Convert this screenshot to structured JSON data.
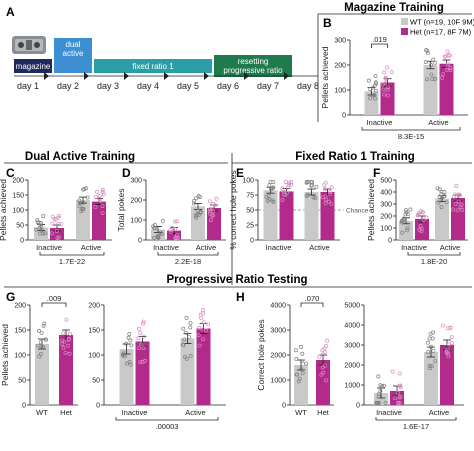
{
  "colors": {
    "wt": "#c9c9c9",
    "het": "#b22a8a",
    "hetDot": "#d98cc3",
    "tl_magazine": "#1f2a5c",
    "tl_dual": "#3d8fd1",
    "tl_fr1": "#2a9ea5",
    "tl_resetting": "#1f7a4d"
  },
  "panel_letters": {
    "a": "A",
    "b": "B",
    "c": "C",
    "d": "D",
    "e": "E",
    "f": "F",
    "g": "G",
    "h": "H"
  },
  "section_titles": {
    "magazine": "Magazine Training",
    "dual": "Dual Active Training",
    "fr1": "Fixed Ratio 1 Training",
    "pr": "Progressive Ratio Testing"
  },
  "timeline": {
    "days": [
      "day 1",
      "day 2",
      "day 3",
      "day 4",
      "day 5",
      "day 6",
      "day 7",
      "day 8"
    ],
    "phases": [
      {
        "label": "magazine",
        "start": 1,
        "end": 2,
        "color_key": "tl_magazine"
      },
      {
        "label": "dual active",
        "start": 2,
        "end": 3,
        "color_key": "tl_dual"
      },
      {
        "label": "fixed ratio 1",
        "start": 3,
        "end": 6,
        "color_key": "tl_fr1"
      },
      {
        "label": "resetting progressive ratio",
        "start": 6,
        "end": 8,
        "color_key": "tl_resetting"
      }
    ]
  },
  "legend": {
    "wt": "WT (n=19, 10F 9M)",
    "het": "Het (n=17, 8F 7M)"
  },
  "chart_data": [
    {
      "panel": "B",
      "type": "bar",
      "ylabel": "Pellets achieved",
      "ylim": [
        0,
        300
      ],
      "yticks": [
        0,
        100,
        200,
        300
      ],
      "categories": [
        "Inactive",
        "Active"
      ],
      "series": [
        {
          "name": "WT",
          "values": [
            95,
            200
          ]
        },
        {
          "name": "Het",
          "values": [
            130,
            205
          ]
        }
      ],
      "annotations": [
        {
          "text": ".019",
          "between": "Inactive"
        }
      ],
      "pvalue": "8.3E-15"
    },
    {
      "panel": "C",
      "type": "bar",
      "ylabel": "Pellets achieved",
      "ylim": [
        0,
        200
      ],
      "yticks": [
        0,
        50,
        100,
        150,
        200
      ],
      "categories": [
        "Inactive",
        "Active"
      ],
      "series": [
        {
          "name": "WT",
          "values": [
            42,
            133
          ]
        },
        {
          "name": "Het",
          "values": [
            40,
            128
          ]
        }
      ],
      "pvalue": "1.7E-22"
    },
    {
      "panel": "D",
      "type": "bar",
      "ylabel": "Total pokes",
      "ylim": [
        0,
        300
      ],
      "yticks": [
        0,
        100,
        200,
        300
      ],
      "categories": [
        "Inactive",
        "Active"
      ],
      "series": [
        {
          "name": "WT",
          "values": [
            53,
            168
          ]
        },
        {
          "name": "Het",
          "values": [
            47,
            160
          ]
        }
      ],
      "pvalue": "2.2E-18"
    },
    {
      "panel": "E",
      "type": "bar",
      "ylabel": "% correct hole pokes",
      "ylim": [
        0,
        100
      ],
      "yticks": [
        0,
        25,
        50,
        75,
        100
      ],
      "categories": [
        "Inactive",
        "Active"
      ],
      "series": [
        {
          "name": "WT",
          "values": [
            83,
            80
          ]
        },
        {
          "name": "Het",
          "values": [
            81,
            80
          ]
        }
      ],
      "reference": {
        "value": 50,
        "label": "Chance"
      }
    },
    {
      "panel": "F",
      "type": "bar",
      "ylabel": "Pellets achieved",
      "ylim": [
        0,
        500
      ],
      "yticks": [
        0,
        100,
        200,
        300,
        400,
        500
      ],
      "categories": [
        "Inactive",
        "Active"
      ],
      "series": [
        {
          "name": "WT",
          "values": [
            160,
            345
          ]
        },
        {
          "name": "Het",
          "values": [
            175,
            350
          ]
        }
      ],
      "pvalue": "1.8E-20"
    },
    {
      "panel": "G1",
      "type": "bar",
      "ylabel": "Pellets achieved",
      "ylim": [
        0,
        200
      ],
      "yticks": [
        0,
        50,
        100,
        150,
        200
      ],
      "categories": [
        "WT",
        "Het"
      ],
      "values": [
        122,
        140
      ],
      "annotations": [
        {
          "text": ".009"
        }
      ]
    },
    {
      "panel": "G2",
      "type": "bar",
      "ylim": [
        0,
        200
      ],
      "yticks": [
        0,
        50,
        100,
        150,
        200
      ],
      "categories": [
        "Inactive",
        "Active"
      ],
      "series": [
        {
          "name": "WT",
          "values": [
            112,
            133
          ]
        },
        {
          "name": "Het",
          "values": [
            127,
            153
          ]
        }
      ],
      "pvalue": ".00003"
    },
    {
      "panel": "H1",
      "type": "bar",
      "ylabel": "Correct hole pokes",
      "ylim": [
        0,
        4000
      ],
      "yticks": [
        0,
        1000,
        2000,
        3000,
        4000
      ],
      "categories": [
        "WT",
        "Het"
      ],
      "values": [
        1600,
        1800
      ],
      "annotations": [
        {
          "text": ".070"
        }
      ]
    },
    {
      "panel": "H2",
      "type": "bar",
      "ylim": [
        0,
        5000
      ],
      "yticks": [
        0,
        1000,
        2000,
        3000,
        4000,
        5000
      ],
      "categories": [
        "Inactive",
        "Active"
      ],
      "series": [
        {
          "name": "WT",
          "values": [
            600,
            2650
          ]
        },
        {
          "name": "Het",
          "values": [
            700,
            3000
          ]
        }
      ],
      "pvalue": "1.6E-17"
    }
  ]
}
